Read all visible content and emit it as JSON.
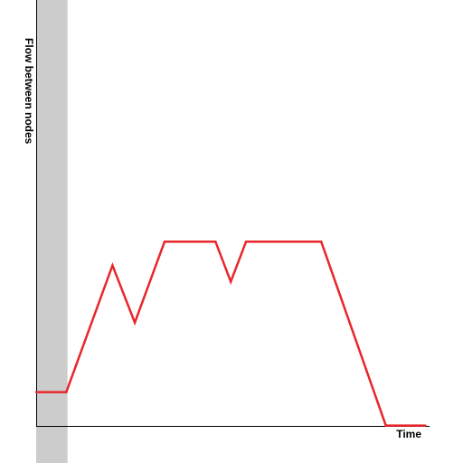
{
  "chart_data": {
    "type": "line",
    "title": "",
    "xlabel": "Time",
    "ylabel": "Flow between nodes",
    "xlim": [
      0,
      100
    ],
    "ylim": [
      0,
      100
    ],
    "grid": false,
    "legend": "none",
    "shaded_region": {
      "x_start": 0,
      "x_end": 8,
      "color": "#cccccc"
    },
    "series": [
      {
        "color": "#e8262b",
        "points": [
          [
            0,
            8.5
          ],
          [
            7.7,
            8.5
          ],
          [
            19.5,
            39.5
          ],
          [
            25.2,
            25.5
          ],
          [
            32.8,
            45.3
          ],
          [
            45.8,
            45.3
          ],
          [
            49.7,
            35.5
          ],
          [
            53.6,
            45.3
          ],
          [
            72.8,
            45.3
          ],
          [
            89.3,
            0.3
          ],
          [
            99.4,
            0.3
          ]
        ]
      }
    ],
    "colors": {
      "axis": "#000000",
      "shade": "#cccccc",
      "line": "#e8262b"
    }
  }
}
